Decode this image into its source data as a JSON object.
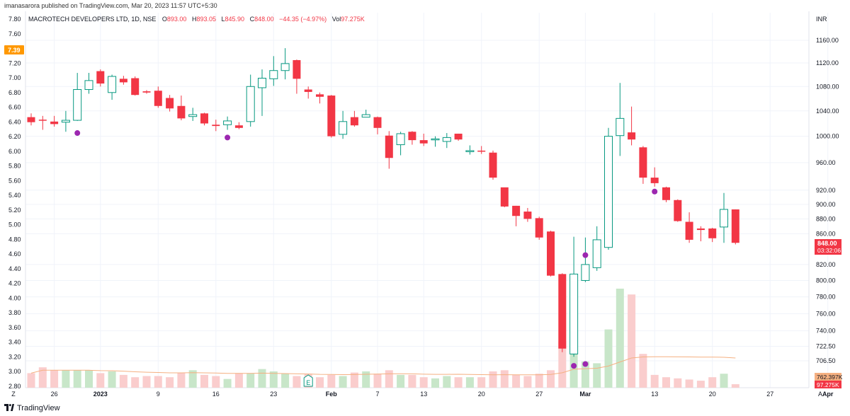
{
  "header": {
    "published_line": "imanasarora published on TradingView.com, Mar 20, 2023 11:57 UTC+5:30"
  },
  "legend": {
    "symbol": "MACROTECH DEVELOPERS LTD, 1D, NSE",
    "o_label": "O",
    "o_value": "893.00",
    "h_label": "H",
    "h_value": "893.05",
    "l_label": "L",
    "l_value": "845.90",
    "c_label": "C",
    "c_value": "848.00",
    "change": "−44.35 (−4.97%)",
    "vol_label": "Vol",
    "vol_value": "97.275K"
  },
  "colors": {
    "up_border": "#089981",
    "down": "#f23645",
    "volume_up": "#c8e6c9",
    "volume_down": "#facdcd",
    "ma_line": "#f5b081",
    "dot": "#9c27b0",
    "grid": "#f0f3fa",
    "left_badge": "#ff9800",
    "earnings": "#089981"
  },
  "footer": {
    "brand": "TradingView"
  },
  "chart_data": {
    "type": "candlestick",
    "symbol": "MACROTECH DEVELOPERS LTD",
    "interval": "1D",
    "exchange": "NSE",
    "right_axis": {
      "currency": "INR",
      "ticks": [
        "1160.00",
        "1120.00",
        "1080.00",
        "1040.00",
        "1000.00",
        "960.00",
        "920.00",
        "900.00",
        "880.00",
        "860.00",
        "820.00",
        "800.00",
        "780.00",
        "760.00",
        "740.00",
        "722.50",
        "706.50"
      ],
      "scale": "log"
    },
    "left_axis": {
      "ticks": [
        "7.80",
        "7.60",
        "7.40",
        "7.20",
        "7.00",
        "6.80",
        "6.60",
        "6.40",
        "6.20",
        "6.00",
        "5.80",
        "5.60",
        "5.40",
        "5.20",
        "5.00",
        "4.80",
        "4.60",
        "4.40",
        "4.20",
        "4.00",
        "3.80",
        "3.60",
        "3.40",
        "3.20",
        "3.00",
        "2.80"
      ],
      "badge": "7.39"
    },
    "x_ticks": [
      {
        "label": "Z",
        "i": -0.8
      },
      {
        "label": "26",
        "i": 2
      },
      {
        "label": "2023",
        "i": 6
      },
      {
        "label": "9",
        "i": 11
      },
      {
        "label": "16",
        "i": 16
      },
      {
        "label": "23",
        "i": 21
      },
      {
        "label": "Feb",
        "i": 26
      },
      {
        "label": "7",
        "i": 30
      },
      {
        "label": "13",
        "i": 34
      },
      {
        "label": "20",
        "i": 39
      },
      {
        "label": "27",
        "i": 44
      },
      {
        "label": "Mar",
        "i": 48
      },
      {
        "label": "13",
        "i": 54
      },
      {
        "label": "20",
        "i": 59
      },
      {
        "label": "27",
        "i": 64
      },
      {
        "label": "Apr",
        "i": 69
      },
      {
        "label": "A",
        "i": 71.5
      }
    ],
    "candles": [
      {
        "o": 1030,
        "h": 1036,
        "l": 1017,
        "c": 1022
      },
      {
        "o": 1026,
        "h": 1032,
        "l": 1010,
        "c": 1025
      },
      {
        "o": 1023,
        "h": 1032,
        "l": 1015,
        "c": 1019
      },
      {
        "o": 1022,
        "h": 1040,
        "l": 1007,
        "c": 1025
      },
      {
        "o": 1025,
        "h": 1103,
        "l": 1024,
        "c": 1075
      },
      {
        "o": 1075,
        "h": 1103,
        "l": 1068,
        "c": 1090
      },
      {
        "o": 1106,
        "h": 1109,
        "l": 1080,
        "c": 1085
      },
      {
        "o": 1070,
        "h": 1100,
        "l": 1058,
        "c": 1097
      },
      {
        "o": 1093,
        "h": 1098,
        "l": 1083,
        "c": 1087
      },
      {
        "o": 1094,
        "h": 1097,
        "l": 1065,
        "c": 1066
      },
      {
        "o": 1072,
        "h": 1074,
        "l": 1068,
        "c": 1070
      },
      {
        "o": 1073,
        "h": 1080,
        "l": 1045,
        "c": 1048
      },
      {
        "o": 1061,
        "h": 1066,
        "l": 1039,
        "c": 1044
      },
      {
        "o": 1048,
        "h": 1065,
        "l": 1025,
        "c": 1028
      },
      {
        "o": 1031,
        "h": 1045,
        "l": 1024,
        "c": 1034
      },
      {
        "o": 1036,
        "h": 1037,
        "l": 1017,
        "c": 1020
      },
      {
        "o": 1018,
        "h": 1026,
        "l": 1008,
        "c": 1016
      },
      {
        "o": 1018,
        "h": 1031,
        "l": 1010,
        "c": 1024
      },
      {
        "o": 1017,
        "h": 1022,
        "l": 1011,
        "c": 1013
      },
      {
        "o": 1023,
        "h": 1100,
        "l": 1015,
        "c": 1080
      },
      {
        "o": 1078,
        "h": 1109,
        "l": 1032,
        "c": 1094
      },
      {
        "o": 1093,
        "h": 1132,
        "l": 1081,
        "c": 1107
      },
      {
        "o": 1107,
        "h": 1146,
        "l": 1092,
        "c": 1119
      },
      {
        "o": 1125,
        "h": 1126,
        "l": 1068,
        "c": 1093
      },
      {
        "o": 1075,
        "h": 1080,
        "l": 1060,
        "c": 1071
      },
      {
        "o": 1067,
        "h": 1070,
        "l": 1052,
        "c": 1063
      },
      {
        "o": 1065,
        "h": 1066,
        "l": 998,
        "c": 1000
      },
      {
        "o": 1003,
        "h": 1040,
        "l": 996,
        "c": 1023
      },
      {
        "o": 1030,
        "h": 1040,
        "l": 1015,
        "c": 1017
      },
      {
        "o": 1030,
        "h": 1042,
        "l": 1033,
        "c": 1034
      },
      {
        "o": 1030,
        "h": 1031,
        "l": 1003,
        "c": 1013
      },
      {
        "o": 1001,
        "h": 1008,
        "l": 951,
        "c": 967
      },
      {
        "o": 987,
        "h": 1007,
        "l": 971,
        "c": 1004
      },
      {
        "o": 1007,
        "h": 1008,
        "l": 987,
        "c": 994
      },
      {
        "o": 994,
        "h": 1004,
        "l": 985,
        "c": 989
      },
      {
        "o": 995,
        "h": 1000,
        "l": 984,
        "c": 996
      },
      {
        "o": 992,
        "h": 1005,
        "l": 982,
        "c": 998
      },
      {
        "o": 1004,
        "h": 1004,
        "l": 993,
        "c": 995
      },
      {
        "o": 978,
        "h": 986,
        "l": 972,
        "c": 978
      },
      {
        "o": 978,
        "h": 985,
        "l": 973,
        "c": 977
      },
      {
        "o": 975,
        "h": 978,
        "l": 935,
        "c": 938
      },
      {
        "o": 924,
        "h": 923,
        "l": 896,
        "c": 897
      },
      {
        "o": 898,
        "h": 898,
        "l": 870,
        "c": 884
      },
      {
        "o": 890,
        "h": 895,
        "l": 876,
        "c": 880
      },
      {
        "o": 881,
        "h": 883,
        "l": 852,
        "c": 855
      },
      {
        "o": 863,
        "h": 864,
        "l": 805,
        "c": 806
      },
      {
        "o": 808,
        "h": 809,
        "l": 716,
        "c": 720
      },
      {
        "o": 714,
        "h": 856,
        "l": 711,
        "c": 808
      },
      {
        "o": 800,
        "h": 855,
        "l": 798,
        "c": 820
      },
      {
        "o": 816,
        "h": 870,
        "l": 812,
        "c": 852
      },
      {
        "o": 842,
        "h": 1013,
        "l": 839,
        "c": 1000
      },
      {
        "o": 1001,
        "h": 1086,
        "l": 970,
        "c": 1028
      },
      {
        "o": 1006,
        "h": 1047,
        "l": 986,
        "c": 995
      },
      {
        "o": 983,
        "h": 985,
        "l": 929,
        "c": 938
      },
      {
        "o": 938,
        "h": 953,
        "l": 925,
        "c": 930
      },
      {
        "o": 924,
        "h": 925,
        "l": 903,
        "c": 906
      },
      {
        "o": 906,
        "h": 907,
        "l": 876,
        "c": 877
      },
      {
        "o": 876,
        "h": 889,
        "l": 848,
        "c": 852
      },
      {
        "o": 867,
        "h": 870,
        "l": 850,
        "c": 865
      },
      {
        "o": 867,
        "h": 868,
        "l": 849,
        "c": 854
      },
      {
        "o": 869,
        "h": 916,
        "l": 848,
        "c": 893
      },
      {
        "o": 893,
        "h": 893.05,
        "l": 845.9,
        "c": 848
      }
    ],
    "volume_relative": [
      0.25,
      0.35,
      0.3,
      0.3,
      0.3,
      0.3,
      0.25,
      0.28,
      0.22,
      0.18,
      0.2,
      0.2,
      0.18,
      0.25,
      0.3,
      0.22,
      0.2,
      0.15,
      0.25,
      0.25,
      0.32,
      0.28,
      0.24,
      0.2,
      0.24,
      0.18,
      0.22,
      0.2,
      0.26,
      0.28,
      0.24,
      0.3,
      0.22,
      0.22,
      0.18,
      0.16,
      0.2,
      0.18,
      0.18,
      0.18,
      0.28,
      0.3,
      0.22,
      0.2,
      0.24,
      0.3,
      0.8,
      1.4,
      0.45,
      0.42,
      1.0,
      1.7,
      1.6,
      0.58,
      0.22,
      0.18,
      0.16,
      0.14,
      0.12,
      0.18,
      0.24,
      0.06
    ],
    "ma_value": "762.397K",
    "volume_value": "97.275K",
    "markers": [
      {
        "i": 4,
        "price": 1005
      },
      {
        "i": 17,
        "price": 998
      },
      {
        "i": 48,
        "price": 832
      },
      {
        "i": 54,
        "price": 918
      },
      {
        "i": 47,
        "price": 701
      },
      {
        "i": 48,
        "price": 703
      }
    ],
    "earnings_marker": {
      "i": 24,
      "label": "E"
    },
    "last_price": "848.00",
    "countdown": "03:32:06"
  }
}
